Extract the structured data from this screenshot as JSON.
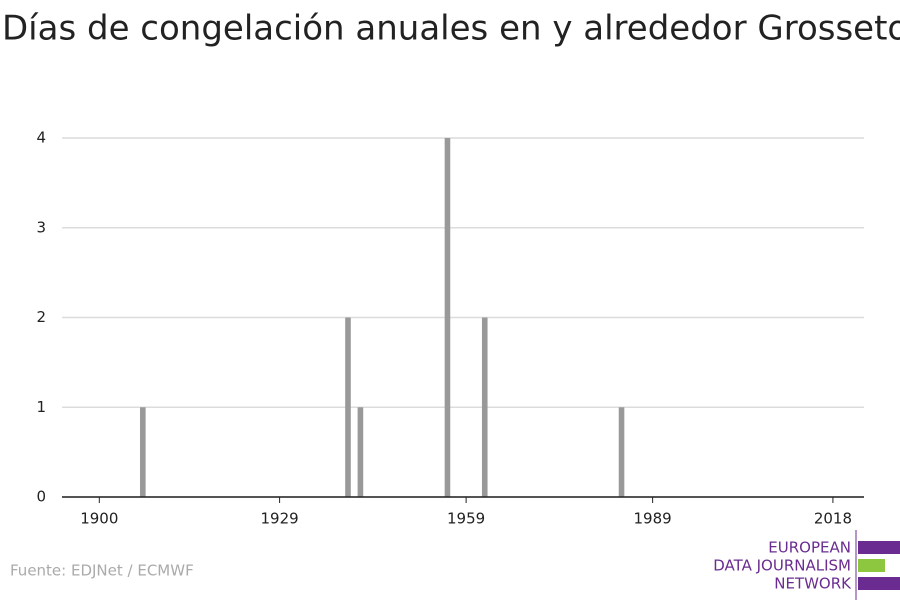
{
  "chart_data": {
    "type": "bar",
    "title": "Días de congelación anuales en y alrededor Grosseto",
    "x": [
      1907,
      1940,
      1942,
      1956,
      1962,
      1984
    ],
    "values": [
      1,
      2,
      1,
      4,
      2,
      1
    ],
    "color": "#999999",
    "xlim": [
      1894,
      2023
    ],
    "xticks": [
      1900,
      1929,
      1959,
      1989,
      2018
    ],
    "ylim": [
      0,
      4
    ],
    "yticks": [
      0,
      1,
      2,
      3,
      4
    ],
    "grid": true
  },
  "source": "Fuente: EDJNet / ECMWF",
  "logo": {
    "lines": [
      "EUROPEAN",
      "DATA JOURNALISM",
      "NETWORK"
    ]
  }
}
